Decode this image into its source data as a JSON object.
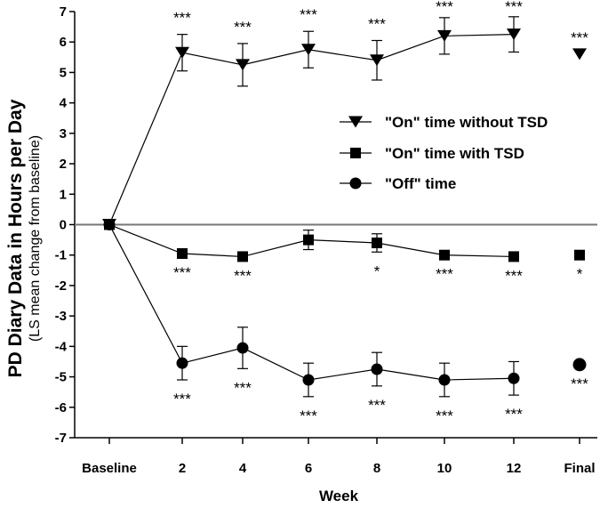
{
  "chart_data": {
    "type": "line",
    "ylabel": "PD Diary Data in Hours per Day",
    "ylabel_sub": "(LS mean change from baseline)",
    "xlabel": "Week",
    "categories": [
      "Baseline",
      "2",
      "4",
      "6",
      "8",
      "10",
      "12",
      "Final"
    ],
    "ylim": [
      -7,
      7
    ],
    "yticks": [
      7,
      6,
      5,
      4,
      3,
      2,
      1,
      0,
      -1,
      -2,
      -3,
      -4,
      -5,
      -6,
      -7
    ],
    "reference_line_y": 0,
    "series": [
      {
        "name": "\"On\" time without TSD",
        "marker": "triangle-down",
        "values": [
          0,
          5.65,
          5.25,
          5.75,
          5.4,
          6.2,
          6.25,
          5.6
        ],
        "error": [
          0,
          0.6,
          0.7,
          0.6,
          0.65,
          0.6,
          0.58,
          null
        ],
        "significance": [
          "",
          "***",
          "***",
          "***",
          "***",
          "***",
          "***",
          "***"
        ],
        "sig_position": "above"
      },
      {
        "name": "\"On\" time with TSD",
        "marker": "square",
        "values": [
          0,
          -0.95,
          -1.05,
          -0.5,
          -0.6,
          -1.0,
          -1.05,
          -1.0
        ],
        "error": [
          0,
          null,
          null,
          0.32,
          0.3,
          null,
          null,
          null
        ],
        "significance": [
          "",
          "***",
          "***",
          "",
          "*",
          "***",
          "***",
          "*"
        ],
        "sig_position": "below"
      },
      {
        "name": "\"Off\" time",
        "marker": "circle",
        "values": [
          0,
          -4.55,
          -4.05,
          -5.1,
          -4.75,
          -5.1,
          -5.05,
          -4.6
        ],
        "error": [
          0,
          0.55,
          0.68,
          0.55,
          0.55,
          0.55,
          0.55,
          null
        ],
        "significance": [
          "",
          "***",
          "***",
          "***",
          "***",
          "***",
          "***",
          "***"
        ],
        "sig_position": "below"
      }
    ],
    "legend_position": "right-middle",
    "connected_points": 7
  }
}
